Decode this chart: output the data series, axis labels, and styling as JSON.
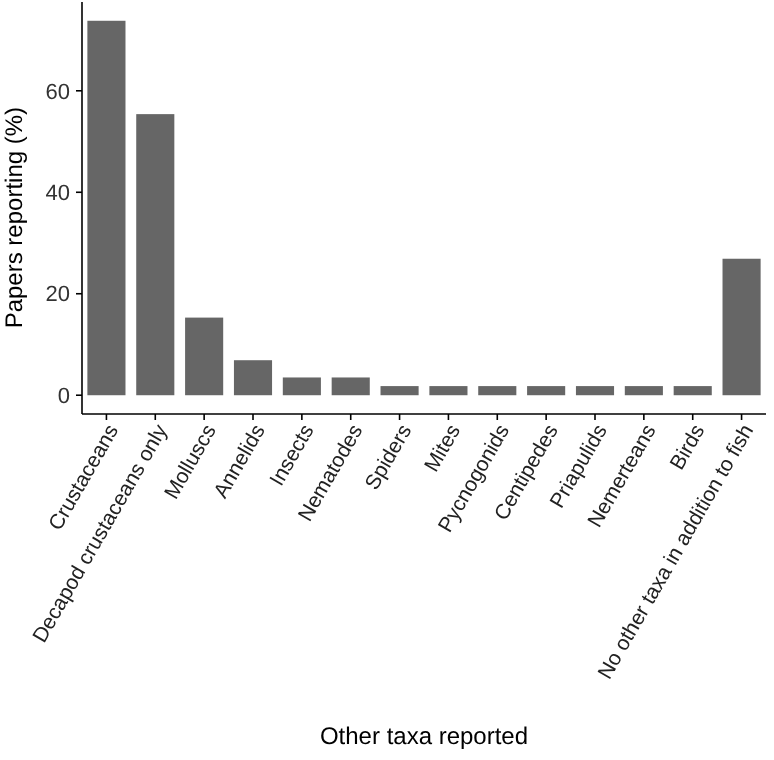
{
  "chart_data": {
    "type": "bar",
    "xlabel": "Other taxa reported",
    "ylabel": "Papers reporting (%)",
    "categories": [
      "Crustaceans",
      "Decapod crustaceans only",
      "Molluscs",
      "Annelids",
      "Insects",
      "Nematodes",
      "Spiders",
      "Mites",
      "Pycnogonids",
      "Centipedes",
      "Priapulids",
      "Nemerteans",
      "Birds",
      "No other taxa in addition to fish"
    ],
    "values": [
      73.8,
      55.4,
      15.3,
      6.9,
      3.5,
      3.5,
      1.8,
      1.8,
      1.8,
      1.8,
      1.8,
      1.8,
      1.8,
      26.9
    ],
    "color": "#666666",
    "ylim": [
      -3.7,
      77.5
    ],
    "yticks": [
      0,
      20,
      40,
      60
    ],
    "grid": false
  }
}
